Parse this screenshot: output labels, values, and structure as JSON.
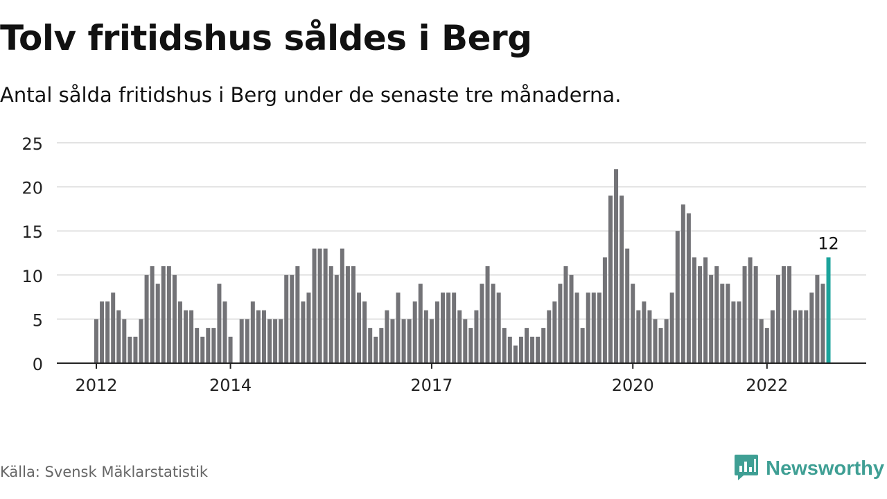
{
  "header": {
    "title": "Tolv fritidshus såldes i Berg",
    "subtitle": "Antal sålda fritidshus i Berg under de senaste tre månaderna."
  },
  "footer": {
    "source": "Källa: Svensk Mäklarstatistik",
    "brand": "Newsworthy",
    "brand_icon": "newsworthy-logo-icon"
  },
  "colors": {
    "bar": "#737377",
    "highlight": "#1ba39b",
    "grid": "#d9d9d9",
    "axis": "#222222",
    "brand": "#3f9f94"
  },
  "chart_data": {
    "type": "bar",
    "title": "Tolv fritidshus såldes i Berg",
    "subtitle": "Antal sålda fritidshus i Berg under de senaste tre månaderna.",
    "ylim": [
      0,
      25
    ],
    "yticks": [
      0,
      5,
      10,
      15,
      20,
      25
    ],
    "grid": true,
    "x_tick_labels": [
      {
        "label": "2012",
        "index": 0
      },
      {
        "label": "2014",
        "index": 24
      },
      {
        "label": "2017",
        "index": 60
      },
      {
        "label": "2020",
        "index": 96
      },
      {
        "label": "2022",
        "index": 120
      }
    ],
    "values": [
      5,
      7,
      7,
      8,
      6,
      5,
      3,
      3,
      5,
      10,
      11,
      9,
      11,
      11,
      10,
      7,
      6,
      6,
      4,
      3,
      4,
      4,
      9,
      7,
      3,
      null,
      5,
      5,
      7,
      6,
      6,
      5,
      5,
      5,
      10,
      10,
      11,
      7,
      8,
      13,
      13,
      13,
      11,
      10,
      13,
      11,
      11,
      8,
      7,
      4,
      3,
      4,
      6,
      5,
      8,
      5,
      5,
      7,
      9,
      6,
      5,
      7,
      8,
      8,
      8,
      6,
      5,
      4,
      6,
      9,
      11,
      9,
      8,
      4,
      3,
      2,
      3,
      4,
      3,
      3,
      4,
      6,
      7,
      9,
      11,
      10,
      8,
      4,
      8,
      8,
      8,
      12,
      19,
      22,
      19,
      13,
      9,
      6,
      7,
      6,
      5,
      4,
      5,
      8,
      15,
      18,
      17,
      12,
      11,
      12,
      10,
      11,
      9,
      9,
      7,
      7,
      11,
      12,
      11,
      5,
      4,
      6,
      10,
      11,
      11,
      6,
      6,
      6,
      8,
      10,
      9,
      12
    ],
    "highlight_last": true,
    "last_value_label": "12"
  }
}
